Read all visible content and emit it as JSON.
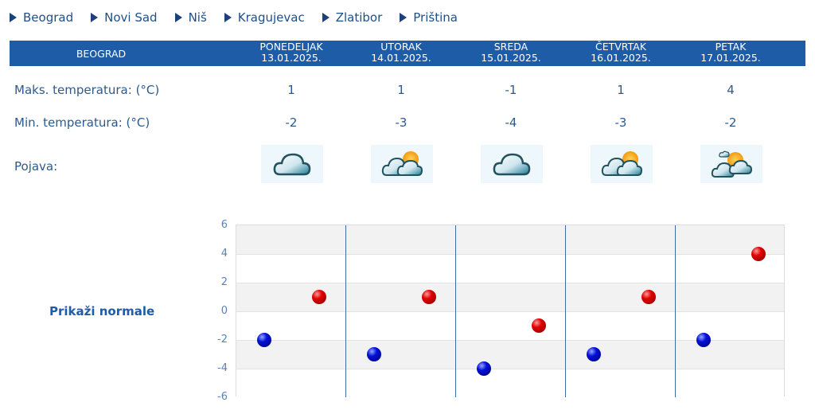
{
  "nav": {
    "items": [
      {
        "label": "Beograd"
      },
      {
        "label": "Novi Sad"
      },
      {
        "label": "Niš"
      },
      {
        "label": "Kragujevac"
      },
      {
        "label": "Zlatibor"
      },
      {
        "label": "Priština"
      }
    ]
  },
  "table": {
    "city": "BEOGRAD",
    "days": [
      {
        "name": "PONEDELJAK",
        "date": "13.01.2025.",
        "max": "1",
        "min": "-2",
        "icon": "cloudy-icon"
      },
      {
        "name": "UTORAK",
        "date": "14.01.2025.",
        "max": "1",
        "min": "-3",
        "icon": "partly-cloudy-icon"
      },
      {
        "name": "SREDA",
        "date": "15.01.2025.",
        "max": "-1",
        "min": "-4",
        "icon": "cloudy-icon"
      },
      {
        "name": "ČETVRTAK",
        "date": "16.01.2025.",
        "max": "1",
        "min": "-3",
        "icon": "partly-cloudy-icon"
      },
      {
        "name": "PETAK",
        "date": "17.01.2025.",
        "max": "4",
        "min": "-2",
        "icon": "sun-behind-clouds-icon"
      }
    ],
    "labels": {
      "max": "Maks. temperatura: (°C)",
      "min": "Min. temperatura: (°C)",
      "phenomenon": "Pojava:"
    }
  },
  "normals_link": "Prikaži normale",
  "chart_data": {
    "type": "scatter",
    "categories": [
      "13.01.2025.",
      "14.01.2025.",
      "15.01.2025.",
      "16.01.2025.",
      "17.01.2025."
    ],
    "series": [
      {
        "name": "Min",
        "color": "#0010d8",
        "values": [
          -2,
          -3,
          -4,
          -3,
          -2
        ]
      },
      {
        "name": "Max",
        "color": "#e00000",
        "values": [
          1,
          1,
          -1,
          1,
          4
        ]
      }
    ],
    "yticks": [
      "6",
      "4",
      "2",
      "0",
      "-2",
      "-4",
      "-6"
    ],
    "ylim": [
      -6,
      6
    ],
    "grid": true,
    "title": "",
    "xlabel": "",
    "ylabel": ""
  },
  "colors": {
    "header_bg": "#1f5ca8",
    "text": "#2d5a8c",
    "max_dot": "#e00000",
    "min_dot": "#0010d8"
  }
}
